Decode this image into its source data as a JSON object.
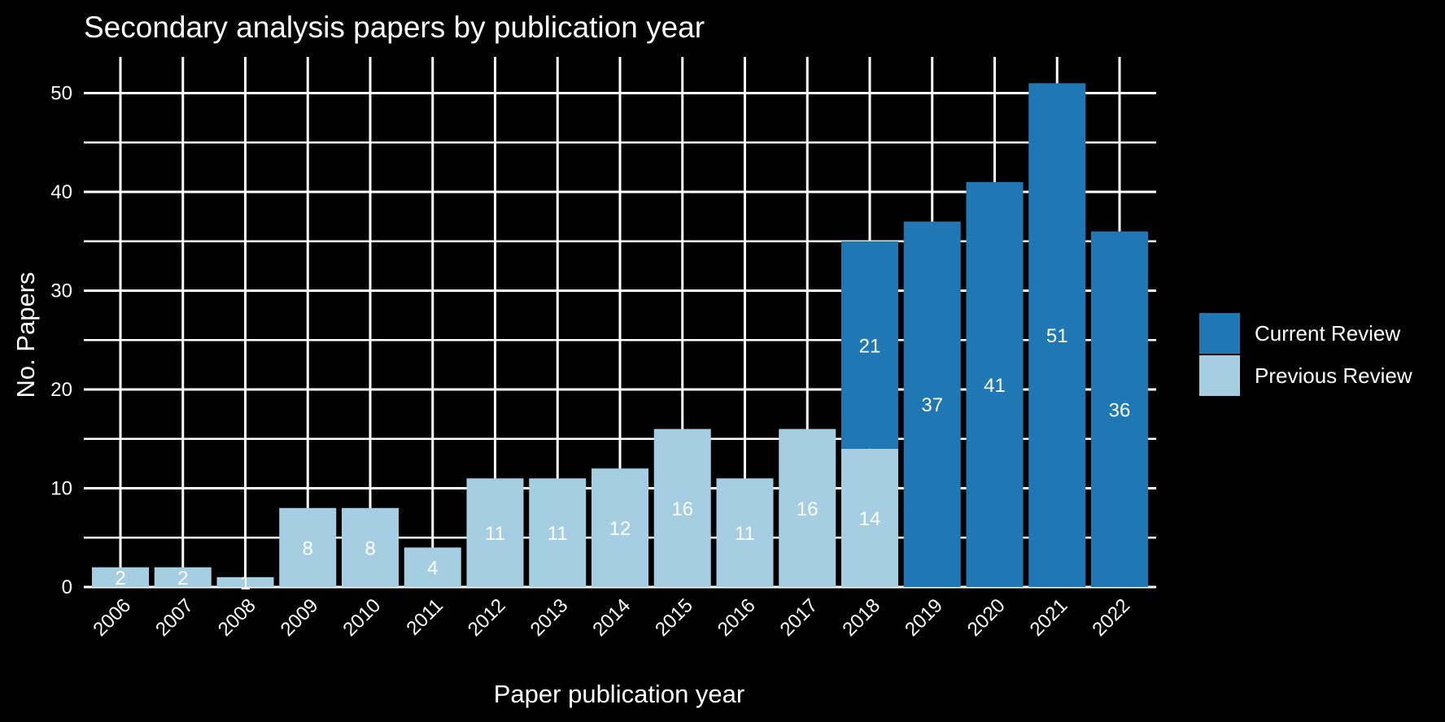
{
  "chart_data": {
    "type": "bar",
    "stacked": true,
    "title": "Secondary analysis papers by publication year",
    "xlabel": "Paper publication year",
    "ylabel": "No. Papers",
    "categories": [
      "2006",
      "2007",
      "2008",
      "2009",
      "2010",
      "2011",
      "2012",
      "2013",
      "2014",
      "2015",
      "2016",
      "2017",
      "2018",
      "2019",
      "2020",
      "2021",
      "2022"
    ],
    "series": [
      {
        "name": "Previous Review",
        "color": "#a6cee3",
        "values": [
          2,
          2,
          1,
          8,
          8,
          4,
          11,
          11,
          12,
          16,
          11,
          16,
          14,
          0,
          0,
          0,
          0
        ]
      },
      {
        "name": "Current Review",
        "color": "#1f78b4",
        "values": [
          0,
          0,
          0,
          0,
          0,
          0,
          0,
          0,
          0,
          0,
          0,
          0,
          21,
          37,
          41,
          51,
          36
        ]
      }
    ],
    "ylim": [
      0,
      53
    ],
    "yticks": [
      0,
      10,
      20,
      30,
      40,
      50
    ],
    "grid": true,
    "legend_position": "right",
    "legend_order": [
      "Current Review",
      "Previous Review"
    ],
    "label_color": "#ffffff",
    "background": "#000000"
  }
}
